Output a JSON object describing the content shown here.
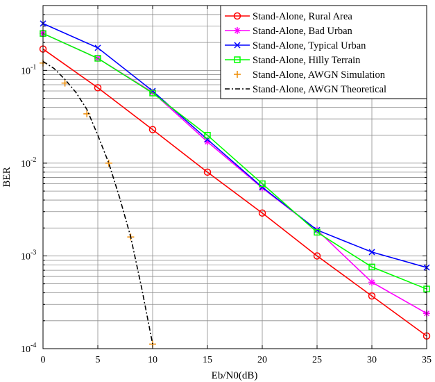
{
  "chart_data": {
    "type": "line",
    "title": "",
    "xlabel": "Eb/N0(dB)",
    "ylabel": "BER",
    "xlim": [
      0,
      35
    ],
    "ylim": [
      0.0001,
      0.5
    ],
    "yscale": "log",
    "grid": true,
    "legend_position": "top-right",
    "x_ticks": [
      0,
      5,
      10,
      15,
      20,
      25,
      30,
      35
    ],
    "x_tick_labels": [
      "0",
      "5",
      "10",
      "15",
      "20",
      "25",
      "30",
      "35"
    ],
    "y_ticks": [
      0.0001,
      0.001,
      0.01,
      0.1
    ],
    "y_tick_labels": [
      {
        "base": "10",
        "exp": "-4"
      },
      {
        "base": "10",
        "exp": "-3"
      },
      {
        "base": "10",
        "exp": "-2"
      },
      {
        "base": "10",
        "exp": "-1"
      }
    ],
    "series": [
      {
        "name": "Stand-Alone, Rural Area",
        "color": "#ff0000",
        "marker": "circle",
        "line": "solid",
        "x": [
          0,
          5,
          10,
          15,
          20,
          25,
          30,
          35
        ],
        "y": [
          0.17,
          0.065,
          0.023,
          0.008,
          0.0029,
          0.001,
          0.00037,
          0.000137
        ]
      },
      {
        "name": "Stand-Alone, Bad Urban",
        "color": "#ff00ff",
        "marker": "asterisk",
        "line": "solid",
        "x": [
          0,
          5,
          10,
          15,
          20,
          25,
          30,
          35
        ],
        "y": [
          0.25,
          0.135,
          0.058,
          0.017,
          0.0054,
          0.0019,
          0.00052,
          0.00024
        ]
      },
      {
        "name": "Stand-Alone, Typical Urban",
        "color": "#0000ff",
        "marker": "x",
        "line": "solid",
        "x": [
          0,
          5,
          10,
          15,
          20,
          25,
          30,
          35
        ],
        "y": [
          0.32,
          0.175,
          0.06,
          0.018,
          0.0055,
          0.0019,
          0.0011,
          0.00075
        ]
      },
      {
        "name": "Stand-Alone, Hilly Terrain",
        "color": "#00ff00",
        "marker": "square",
        "line": "solid",
        "x": [
          0,
          5,
          10,
          15,
          20,
          25,
          30,
          35
        ],
        "y": [
          0.25,
          0.135,
          0.057,
          0.02,
          0.006,
          0.0018,
          0.00076,
          0.00044
        ]
      },
      {
        "name": "Stand-Alone, AWGN Simulation",
        "color": "#ee8a00",
        "marker": "plus",
        "line": "none",
        "x": [
          0,
          2,
          4,
          6,
          8,
          10
        ],
        "y": [
          0.12,
          0.073,
          0.034,
          0.01,
          0.0016,
          0.000112
        ]
      },
      {
        "name": "Stand-Alone, AWGN Theoretical",
        "color": "#000000",
        "marker": "none",
        "line": "dashdot",
        "x": [
          0,
          1,
          2,
          3,
          4,
          5,
          6,
          7,
          8,
          9,
          10
        ],
        "y": [
          0.125,
          0.105,
          0.08,
          0.058,
          0.038,
          0.02,
          0.01,
          0.0042,
          0.0016,
          0.00045,
          0.000112
        ]
      }
    ]
  }
}
